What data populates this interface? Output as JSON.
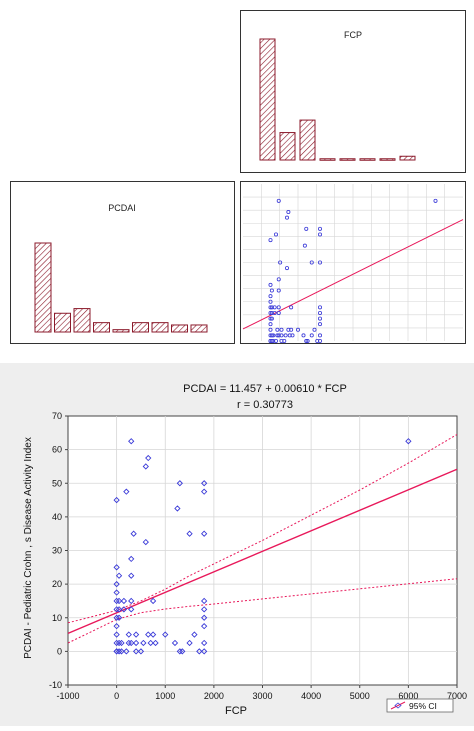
{
  "colors": {
    "bar_stroke": "#8b1a2b",
    "bar_hatch": "#8b1a2b",
    "point": "#3a3ad8",
    "fit_line": "#e8185a",
    "ci_line": "#e8185a",
    "grid": "#d6d6d6",
    "bottom_bg": "#eeeeee"
  },
  "chart_data": [
    {
      "id": "fcp-histogram",
      "type": "bar",
      "title": "FCP",
      "values": [
        97,
        22,
        32,
        1,
        1,
        1,
        1,
        3
      ]
    },
    {
      "id": "pcdai-histogram",
      "type": "bar",
      "title": "PCDAI",
      "values": [
        38,
        8,
        10,
        4,
        1,
        4,
        4,
        3,
        3
      ]
    },
    {
      "id": "matrix-scatter",
      "type": "scatter",
      "xlim": [
        -1000,
        7000
      ],
      "ylim": [
        0,
        70
      ],
      "fit": {
        "intercept": 11.457,
        "slope": 0.0061
      }
    },
    {
      "id": "main-scatter",
      "type": "scatter",
      "title": "PCDAI = 11.457 + 0.00610 * FCP",
      "subtitle": "r =  0.30773",
      "xlabel": "FCP",
      "ylabel": "PCDAI - Pediatric Crohn , s Disease Activity Index",
      "xlim": [
        -1000,
        7000
      ],
      "ylim": [
        -10,
        70
      ],
      "xticks": [
        "-1000",
        "0",
        "1000",
        "2000",
        "3000",
        "4000",
        "5000",
        "6000",
        "7000"
      ],
      "yticks": [
        "-10",
        "0",
        "10",
        "20",
        "30",
        "40",
        "50",
        "60",
        "70"
      ],
      "grid": true,
      "legend": {
        "label": "95% CI",
        "position": "bottom-right"
      },
      "fit": {
        "intercept": 11.457,
        "slope": 0.0061
      },
      "ci_upper": [
        [
          -1000,
          8.5
        ],
        [
          0,
          12.2
        ],
        [
          500,
          15.0
        ],
        [
          1000,
          18.5
        ],
        [
          1500,
          22.5
        ],
        [
          2000,
          26.0
        ],
        [
          3000,
          33.0
        ],
        [
          4000,
          40.5
        ],
        [
          5000,
          48.0
        ],
        [
          6000,
          56.0
        ],
        [
          7000,
          64.5
        ]
      ],
      "ci_lower": [
        [
          -1000,
          2.5
        ],
        [
          0,
          9.5
        ],
        [
          500,
          11.5
        ],
        [
          1000,
          12.6
        ],
        [
          1500,
          13.4
        ],
        [
          2000,
          14.1
        ],
        [
          3000,
          15.6
        ],
        [
          4000,
          17.1
        ],
        [
          5000,
          18.6
        ],
        [
          6000,
          20.1
        ],
        [
          7000,
          21.6
        ]
      ],
      "points": [
        [
          0,
          45
        ],
        [
          0,
          25
        ],
        [
          0,
          20
        ],
        [
          0,
          17.5
        ],
        [
          0,
          15
        ],
        [
          0,
          12.5
        ],
        [
          0,
          10
        ],
        [
          0,
          7.5
        ],
        [
          0,
          5
        ],
        [
          0,
          2.5
        ],
        [
          0,
          0
        ],
        [
          0,
          0
        ],
        [
          50,
          22.5
        ],
        [
          50,
          15
        ],
        [
          50,
          12.5
        ],
        [
          50,
          10
        ],
        [
          50,
          2.5
        ],
        [
          50,
          0
        ],
        [
          100,
          0
        ],
        [
          100,
          2.5
        ],
        [
          150,
          15
        ],
        [
          150,
          12.5
        ],
        [
          200,
          47.5
        ],
        [
          200,
          0
        ],
        [
          250,
          5
        ],
        [
          250,
          2.5
        ],
        [
          300,
          62.5
        ],
        [
          300,
          27.5
        ],
        [
          300,
          22.5
        ],
        [
          300,
          15
        ],
        [
          300,
          12.5
        ],
        [
          300,
          2.5
        ],
        [
          350,
          35
        ],
        [
          400,
          5
        ],
        [
          400,
          2.5
        ],
        [
          400,
          0
        ],
        [
          500,
          0
        ],
        [
          550,
          2.5
        ],
        [
          600,
          55
        ],
        [
          600,
          32.5
        ],
        [
          650,
          57.5
        ],
        [
          650,
          5
        ],
        [
          700,
          2.5
        ],
        [
          750,
          15
        ],
        [
          750,
          5
        ],
        [
          800,
          2.5
        ],
        [
          1000,
          5
        ],
        [
          1200,
          2.5
        ],
        [
          1250,
          42.5
        ],
        [
          1300,
          50
        ],
        [
          1300,
          0
        ],
        [
          1350,
          0
        ],
        [
          1500,
          35
        ],
        [
          1500,
          2.5
        ],
        [
          1600,
          5
        ],
        [
          1700,
          0
        ],
        [
          1800,
          50
        ],
        [
          1800,
          47.5
        ],
        [
          1800,
          35
        ],
        [
          1800,
          15
        ],
        [
          1800,
          12.5
        ],
        [
          1800,
          10
        ],
        [
          1800,
          7.5
        ],
        [
          1800,
          2.5
        ],
        [
          1800,
          0
        ],
        [
          6000,
          62.5
        ]
      ]
    }
  ]
}
